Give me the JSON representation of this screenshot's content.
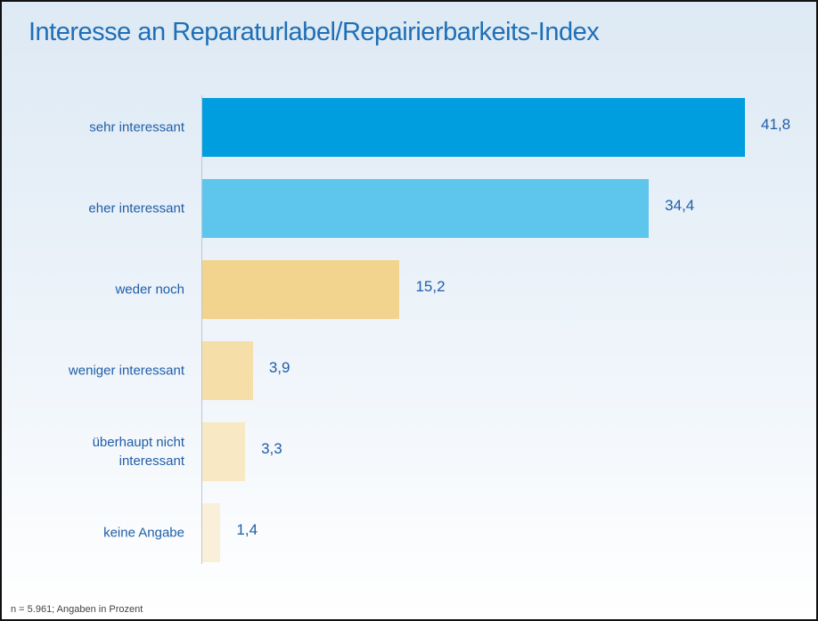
{
  "chart_data": {
    "type": "bar",
    "orientation": "horizontal",
    "title": "Interesse an Reparaturlabel/Repairierbarkeits-Index",
    "categories": [
      "sehr interessant",
      "eher interessant",
      "weder noch",
      "weniger interessant",
      "überhaupt nicht interessant",
      "keine Angabe"
    ],
    "values": [
      41.8,
      34.4,
      15.2,
      3.9,
      3.3,
      1.4
    ],
    "value_labels": [
      "41,8",
      "34,4",
      "15,2",
      "3,9",
      "3,3",
      "1,4"
    ],
    "colors": [
      "#009ddf",
      "#5ec5ec",
      "#f2d48e",
      "#f5dea8",
      "#f8e8c4",
      "#faefd8"
    ],
    "footnote": "n = 5.961; Angaben in Prozent"
  }
}
